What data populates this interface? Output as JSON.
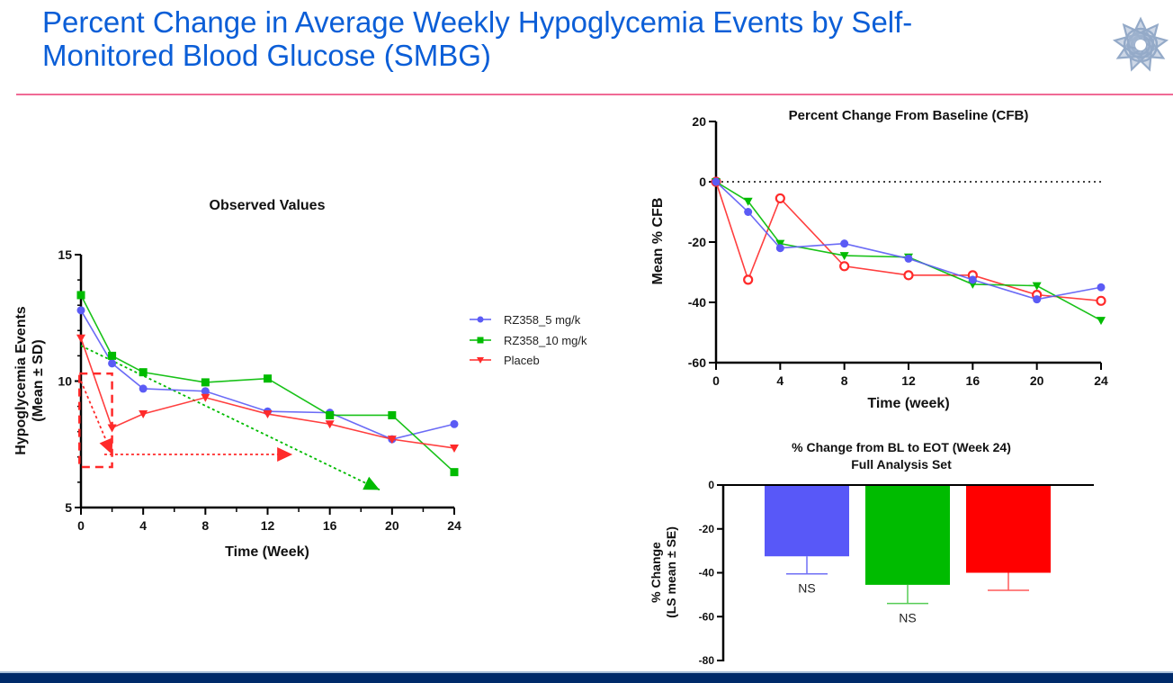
{
  "slide": {
    "title_line1": "Percent Change in Average Weekly Hypoglycemia Events by Self-",
    "title_line2": "Monitored Blood Glucose (SMBG)",
    "logo_icon": "star-flower-logo-icon",
    "colors": {
      "title": "#0b5ed7",
      "rule": "#f06a95",
      "footer": "#002a6a"
    }
  },
  "chart_data": [
    {
      "id": "observed",
      "type": "line",
      "title": "Observed Values",
      "xlabel": "Time (Week)",
      "ylabel_line1": "Hypoglycemia Events",
      "ylabel_line2": "(Mean ± SD)",
      "xlim": [
        0,
        24
      ],
      "ylim": [
        5,
        15
      ],
      "xticks": [
        0,
        4,
        8,
        12,
        16,
        20,
        24
      ],
      "xticks_minor": [
        2,
        6,
        10,
        14,
        18,
        22
      ],
      "yticks": [
        5,
        10,
        15
      ],
      "yticks_minor": [
        6,
        7,
        8,
        9,
        11,
        12,
        13,
        14
      ],
      "legend_position": "right",
      "series": [
        {
          "name": "RZ358_5 mg/k",
          "color": "#5b5bf5",
          "marker": "circle",
          "x": [
            0,
            2,
            4,
            8,
            12,
            16,
            20,
            24
          ],
          "values": [
            12.8,
            10.7,
            9.7,
            9.6,
            8.8,
            8.75,
            7.7,
            8.3
          ]
        },
        {
          "name": "RZ358_10 mg/k",
          "color": "#00bb00",
          "marker": "square",
          "x": [
            0,
            2,
            4,
            8,
            12,
            16,
            20,
            24
          ],
          "values": [
            13.4,
            11.0,
            10.35,
            9.95,
            10.1,
            8.65,
            8.65,
            6.4
          ]
        },
        {
          "name": "Placeb",
          "color": "#ff2a2a",
          "marker": "triangle-down",
          "x": [
            0,
            2,
            4,
            8,
            12,
            16,
            20,
            24
          ],
          "values": [
            11.7,
            8.15,
            8.7,
            9.35,
            8.7,
            8.3,
            7.7,
            7.35
          ]
        }
      ],
      "annotations": [
        {
          "type": "dashed-box",
          "color": "#ff2a2a",
          "x": [
            -0.1,
            2.0
          ],
          "y": [
            6.6,
            10.3
          ]
        },
        {
          "type": "dotted-arrow",
          "color": "#ff2a2a",
          "points": [
            [
              0,
              10.0
            ],
            [
              2,
              7.1
            ]
          ]
        },
        {
          "type": "dotted-arrow",
          "color": "#ff2a2a",
          "points": [
            [
              1.5,
              7.1
            ],
            [
              13.6,
              7.1
            ]
          ]
        },
        {
          "type": "dotted-arrow",
          "color": "#00bb00",
          "points": [
            [
              0,
              11.4
            ],
            [
              19.2,
              5.7
            ]
          ]
        }
      ]
    },
    {
      "id": "cfb",
      "type": "line",
      "title": "Percent Change From Baseline (CFB)",
      "xlabel": "Time (week)",
      "ylabel": "Mean % CFB",
      "xlim": [
        0,
        24
      ],
      "ylim": [
        -60,
        20
      ],
      "xticks": [
        0,
        4,
        8,
        12,
        16,
        20,
        24
      ],
      "yticks": [
        -60,
        -40,
        -20,
        0,
        20
      ],
      "reference_line": 0,
      "series": [
        {
          "name": "RZ358_5 mg/k",
          "color": "#5b5bf5",
          "marker": "circle",
          "x": [
            0,
            2,
            4,
            8,
            12,
            16,
            20,
            24
          ],
          "values": [
            0,
            -10,
            -22,
            -20.5,
            -25.5,
            -32.5,
            -39,
            -35
          ]
        },
        {
          "name": "RZ358_10 mg/k",
          "color": "#00bb00",
          "marker": "triangle-down",
          "x": [
            0,
            2,
            4,
            8,
            12,
            16,
            20,
            24
          ],
          "values": [
            0,
            -6.5,
            -20.5,
            -24.5,
            -25,
            -34,
            -34.5,
            -46
          ]
        },
        {
          "name": "Placeb",
          "color": "#ff2a2a",
          "marker": "open-circle",
          "x": [
            0,
            2,
            4,
            8,
            12,
            16,
            20,
            24
          ],
          "values": [
            0,
            -32.5,
            -5.5,
            -28,
            -31,
            -31,
            -37.5,
            -39.5
          ]
        }
      ]
    },
    {
      "id": "eot",
      "type": "bar",
      "title_line1": "% Change from BL to EOT (Week 24)",
      "title_line2": "Full Analysis Set",
      "ylabel_line1": "% Change",
      "ylabel_line2": "(LS mean ± SE)",
      "ylim": [
        -80,
        0
      ],
      "yticks": [
        -80,
        -60,
        -40,
        -20,
        0
      ],
      "categories": [
        "RZ358_5 mg/k",
        "RZ358_10 mg/k",
        "Placeb"
      ],
      "values": [
        -32.5,
        -45.5,
        -40
      ],
      "errors": [
        8,
        8.5,
        8
      ],
      "colors": [
        "#5858f8",
        "#00bb00",
        "#ff0000"
      ],
      "error_colors": [
        "#6f6ff5",
        "#55cc55",
        "#ff5a5a"
      ],
      "labels": [
        "NS",
        "NS",
        ""
      ]
    }
  ]
}
